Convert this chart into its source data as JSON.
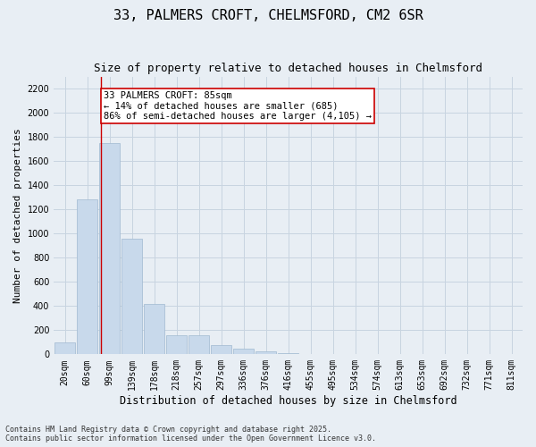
{
  "title1": "33, PALMERS CROFT, CHELMSFORD, CM2 6SR",
  "title2": "Size of property relative to detached houses in Chelmsford",
  "xlabel": "Distribution of detached houses by size in Chelmsford",
  "ylabel": "Number of detached properties",
  "footnote1": "Contains HM Land Registry data © Crown copyright and database right 2025.",
  "footnote2": "Contains public sector information licensed under the Open Government Licence v3.0.",
  "bin_labels": [
    "20sqm",
    "60sqm",
    "99sqm",
    "139sqm",
    "178sqm",
    "218sqm",
    "257sqm",
    "297sqm",
    "336sqm",
    "376sqm",
    "416sqm",
    "455sqm",
    "495sqm",
    "534sqm",
    "574sqm",
    "613sqm",
    "653sqm",
    "692sqm",
    "732sqm",
    "771sqm",
    "811sqm"
  ],
  "bar_values": [
    100,
    1280,
    1750,
    960,
    415,
    160,
    155,
    75,
    50,
    25,
    10,
    5,
    3,
    2,
    1,
    1,
    0,
    0,
    0,
    0,
    0
  ],
  "bar_color": "#c8d9eb",
  "bar_edgecolor": "#a0b8d0",
  "grid_color": "#c8d4e0",
  "background_color": "#e8eef4",
  "vline_x": 1.62,
  "vline_color": "#cc0000",
  "annotation_text": "33 PALMERS CROFT: 85sqm\n← 14% of detached houses are smaller (685)\n86% of semi-detached houses are larger (4,105) →",
  "annotation_box_color": "#ffffff",
  "annotation_box_edgecolor": "#cc0000",
  "ylim": [
    0,
    2300
  ],
  "yticks": [
    0,
    200,
    400,
    600,
    800,
    1000,
    1200,
    1400,
    1600,
    1800,
    2000,
    2200
  ],
  "title1_fontsize": 11,
  "title2_fontsize": 9,
  "xlabel_fontsize": 8.5,
  "ylabel_fontsize": 8,
  "tick_fontsize": 7,
  "annot_fontsize": 7.5,
  "footnote_fontsize": 6
}
